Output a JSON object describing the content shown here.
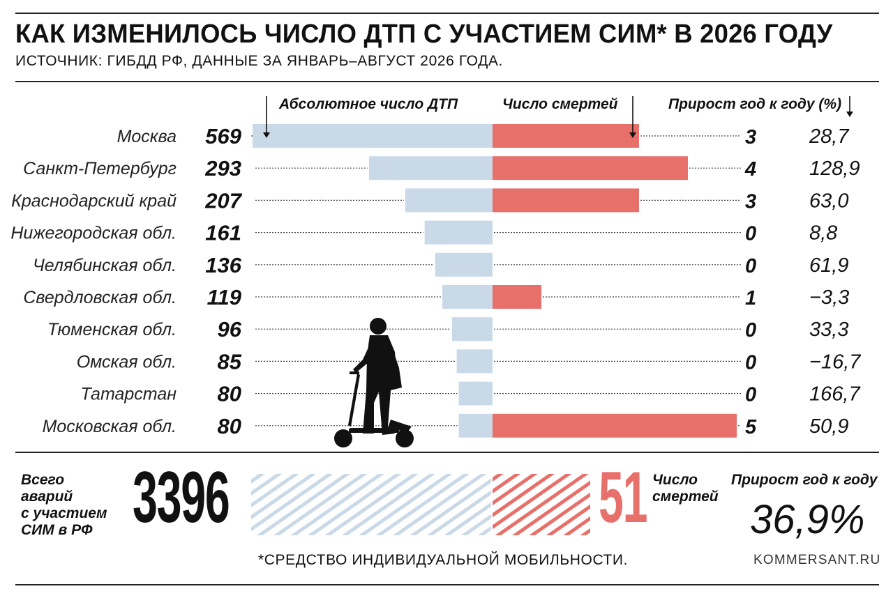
{
  "header": {
    "title": "КАК ИЗМЕНИЛОСЬ ЧИСЛО ДТП С УЧАСТИЕМ СИМ* В 2026 ГОДУ",
    "subtitle": "ИСТОЧНИК: ГИБДД РФ, ДАННЫЕ ЗА ЯНВАРЬ–АВГУСТ 2026 ГОДА."
  },
  "chart_data": {
    "type": "bar",
    "columns": {
      "accidents": "Абсолютное число ДТП",
      "deaths": "Число смертей",
      "growth": "Прирост год к году (%)"
    },
    "categories": [
      "Москва",
      "Санкт-Петербург",
      "Краснодарский край",
      "Нижегородская обл.",
      "Челябинская обл.",
      "Свердловская обл.",
      "Тюменская обл.",
      "Омская обл.",
      "Татарстан",
      "Московская обл."
    ],
    "series": [
      {
        "values": [
          569,
          293,
          207,
          161,
          136,
          119,
          96,
          85,
          80,
          80
        ]
      },
      {
        "values": [
          3,
          4,
          3,
          0,
          0,
          1,
          0,
          0,
          0,
          5
        ]
      },
      {
        "values": [
          "28,7",
          "128,9",
          "63,0",
          "8,8",
          "61,9",
          "−3,3",
          "33,3",
          "−16,7",
          "166,7",
          "50,9"
        ]
      }
    ],
    "colors": {
      "accidents": "#c9d9e8",
      "deaths": "#e8706b"
    }
  },
  "totals": {
    "label_lines": [
      "Всего",
      "аварий",
      "с участием",
      "СИМ в РФ"
    ],
    "accidents": "3396",
    "deaths": "51",
    "deaths_label_lines": [
      "Число",
      "смертей"
    ],
    "growth_label": "Прирост год к году",
    "growth": "36,9%"
  },
  "footer": {
    "footnote": "*СРЕДСТВО ИНДИВИДУАЛЬНОЙ МОБИЛЬНОСТИ.",
    "source": "KOMMERSANT.RU"
  },
  "illustration": {
    "icon": "scooter-rider-icon"
  }
}
